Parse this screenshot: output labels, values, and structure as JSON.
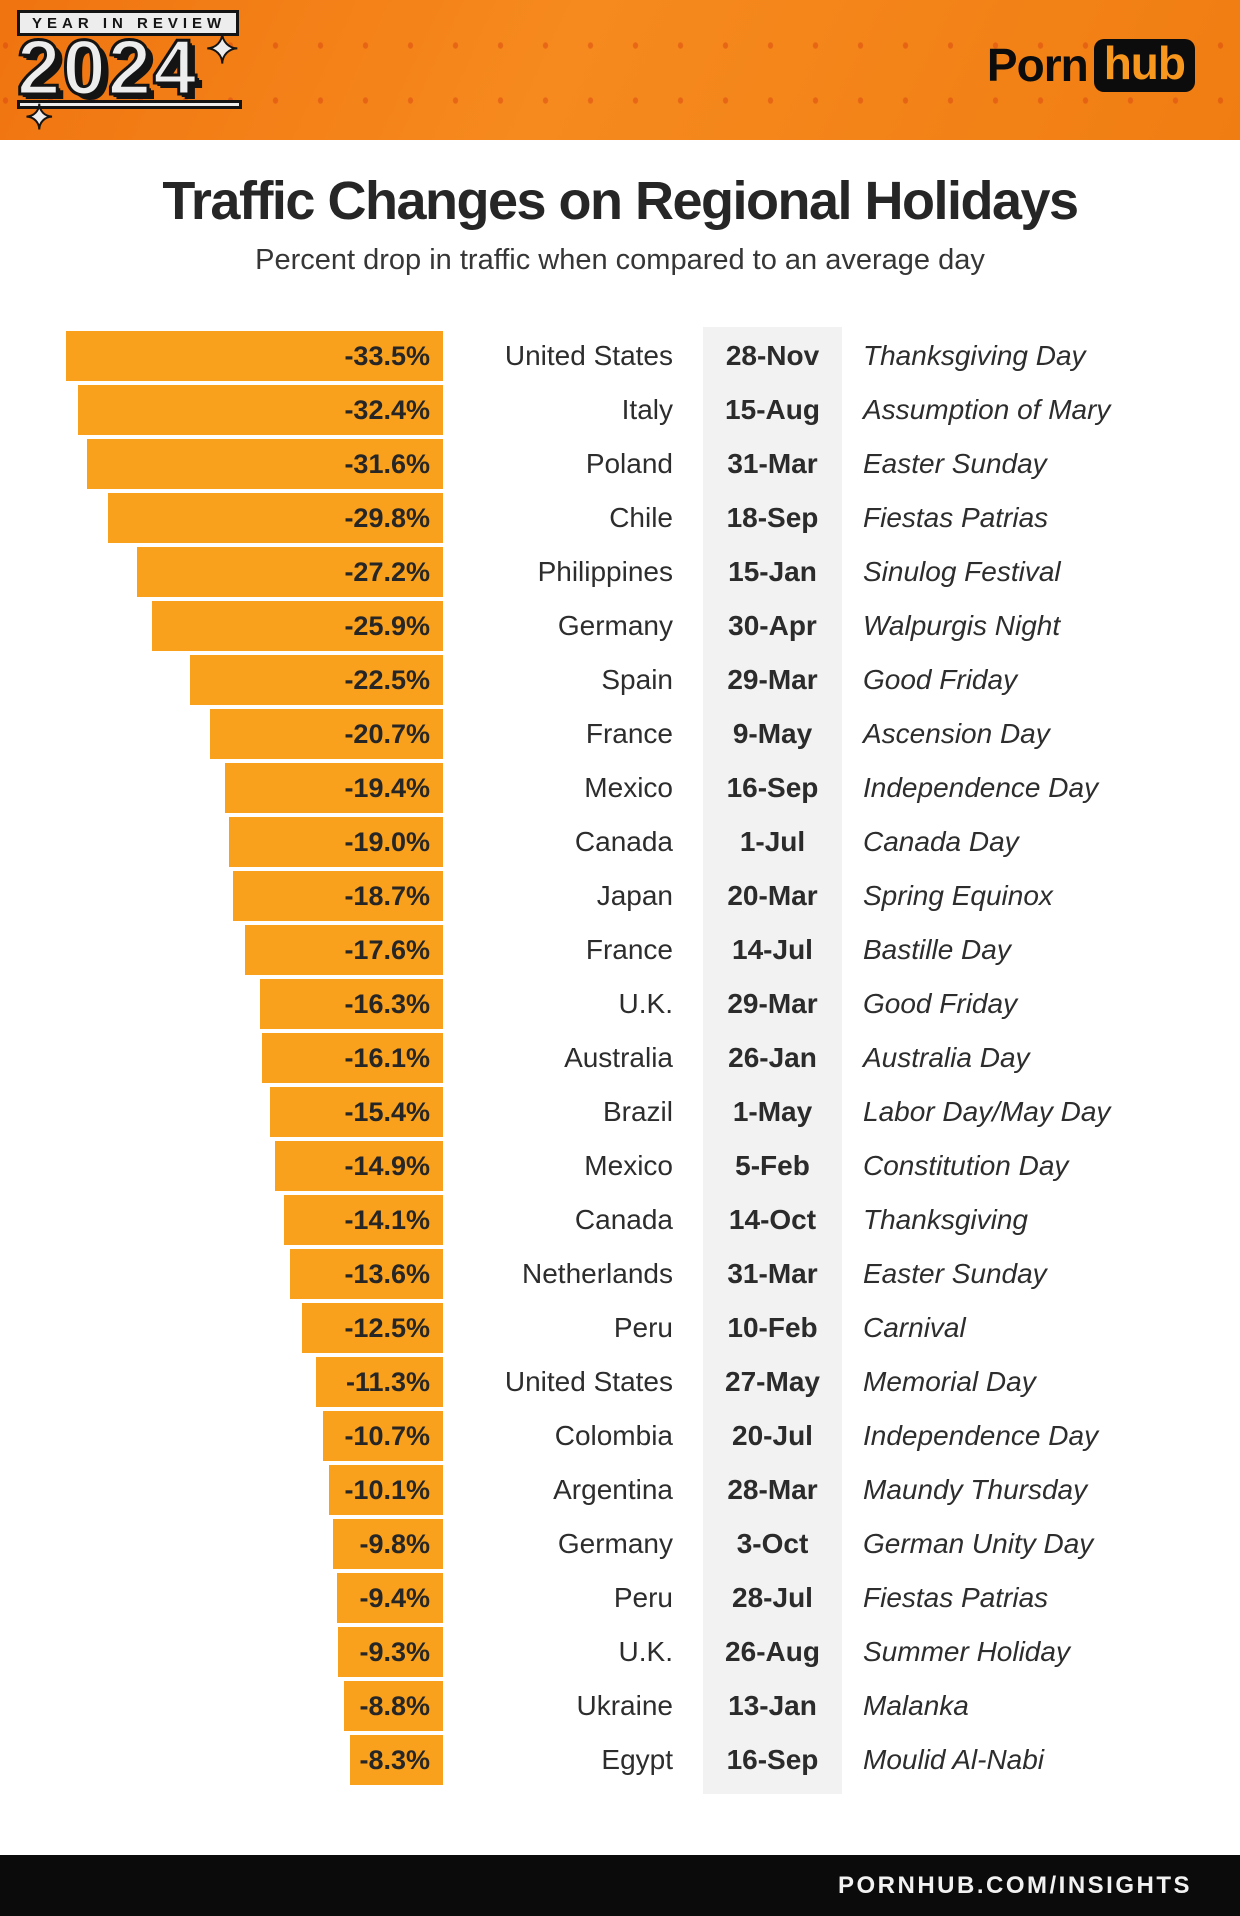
{
  "header": {
    "badge": "YEAR IN REVIEW",
    "year": "2024",
    "brand_porn": "Porn",
    "brand_hub": "hub",
    "star_glyph": "✦"
  },
  "title": "Traffic Changes on Regional Holidays",
  "subtitle": "Percent drop in traffic when compared to an average day",
  "footer": "PORNHUB.COM/INSIGHTS",
  "colors": {
    "header_orange": "#F5821A",
    "header_dot": "#D53E0E",
    "bar_orange": "#F9A01C",
    "date_strip_gray": "#F2F2F2",
    "footer_black": "#0B0B0B",
    "hub_box_black": "#0C0C0C",
    "hub_text_orange": "#F7971D",
    "text_dark": "#2B2B2B"
  },
  "chart_data": {
    "type": "bar",
    "orientation": "horizontal",
    "title": "Traffic Changes on Regional Holidays",
    "subtitle": "Percent drop in traffic when compared to an average day",
    "unit": "%",
    "value_axis_range": [
      -33.5,
      0
    ],
    "grid": false,
    "legend": false,
    "bar_color": "#F9A01C",
    "columns": [
      "percent_drop",
      "country",
      "date",
      "holiday"
    ],
    "rows": [
      {
        "value": -33.5,
        "label": "-33.5%",
        "country": "United States",
        "date": "28-Nov",
        "holiday": "Thanksgiving Day"
      },
      {
        "value": -32.4,
        "label": "-32.4%",
        "country": "Italy",
        "date": "15-Aug",
        "holiday": "Assumption of Mary"
      },
      {
        "value": -31.6,
        "label": "-31.6%",
        "country": "Poland",
        "date": "31-Mar",
        "holiday": "Easter Sunday"
      },
      {
        "value": -29.8,
        "label": "-29.8%",
        "country": "Chile",
        "date": "18-Sep",
        "holiday": "Fiestas Patrias"
      },
      {
        "value": -27.2,
        "label": "-27.2%",
        "country": "Philippines",
        "date": "15-Jan",
        "holiday": "Sinulog Festival"
      },
      {
        "value": -25.9,
        "label": "-25.9%",
        "country": "Germany",
        "date": "30-Apr",
        "holiday": "Walpurgis Night"
      },
      {
        "value": -22.5,
        "label": "-22.5%",
        "country": "Spain",
        "date": "29-Mar",
        "holiday": "Good Friday"
      },
      {
        "value": -20.7,
        "label": "-20.7%",
        "country": "France",
        "date": "9-May",
        "holiday": "Ascension Day"
      },
      {
        "value": -19.4,
        "label": "-19.4%",
        "country": "Mexico",
        "date": "16-Sep",
        "holiday": "Independence Day"
      },
      {
        "value": -19.0,
        "label": "-19.0%",
        "country": "Canada",
        "date": "1-Jul",
        "holiday": "Canada Day"
      },
      {
        "value": -18.7,
        "label": "-18.7%",
        "country": "Japan",
        "date": "20-Mar",
        "holiday": "Spring Equinox"
      },
      {
        "value": -17.6,
        "label": "-17.6%",
        "country": "France",
        "date": "14-Jul",
        "holiday": "Bastille Day"
      },
      {
        "value": -16.3,
        "label": "-16.3%",
        "country": "U.K.",
        "date": "29-Mar",
        "holiday": "Good Friday"
      },
      {
        "value": -16.1,
        "label": "-16.1%",
        "country": "Australia",
        "date": "26-Jan",
        "holiday": "Australia Day"
      },
      {
        "value": -15.4,
        "label": "-15.4%",
        "country": "Brazil",
        "date": "1-May",
        "holiday": "Labor Day/May Day"
      },
      {
        "value": -14.9,
        "label": "-14.9%",
        "country": "Mexico",
        "date": "5-Feb",
        "holiday": "Constitution Day"
      },
      {
        "value": -14.1,
        "label": "-14.1%",
        "country": "Canada",
        "date": "14-Oct",
        "holiday": "Thanksgiving"
      },
      {
        "value": -13.6,
        "label": "-13.6%",
        "country": "Netherlands",
        "date": "31-Mar",
        "holiday": "Easter Sunday"
      },
      {
        "value": -12.5,
        "label": "-12.5%",
        "country": "Peru",
        "date": "10-Feb",
        "holiday": "Carnival"
      },
      {
        "value": -11.3,
        "label": "-11.3%",
        "country": "United States",
        "date": "27-May",
        "holiday": "Memorial Day"
      },
      {
        "value": -10.7,
        "label": "-10.7%",
        "country": "Colombia",
        "date": "20-Jul",
        "holiday": "Independence Day"
      },
      {
        "value": -10.1,
        "label": "-10.1%",
        "country": "Argentina",
        "date": "28-Mar",
        "holiday": "Maundy Thursday"
      },
      {
        "value": -9.8,
        "label": "-9.8%",
        "country": "Germany",
        "date": "3-Oct",
        "holiday": "German Unity Day"
      },
      {
        "value": -9.4,
        "label": "-9.4%",
        "country": "Peru",
        "date": "28-Jul",
        "holiday": "Fiestas Patrias"
      },
      {
        "value": -9.3,
        "label": "-9.3%",
        "country": "U.K.",
        "date": "26-Aug",
        "holiday": "Summer Holiday"
      },
      {
        "value": -8.8,
        "label": "-8.8%",
        "country": "Ukraine",
        "date": "13-Jan",
        "holiday": "Malanka"
      },
      {
        "value": -8.3,
        "label": "-8.3%",
        "country": "Egypt",
        "date": "16-Sep",
        "holiday": "Moulid Al-Nabi"
      }
    ]
  }
}
